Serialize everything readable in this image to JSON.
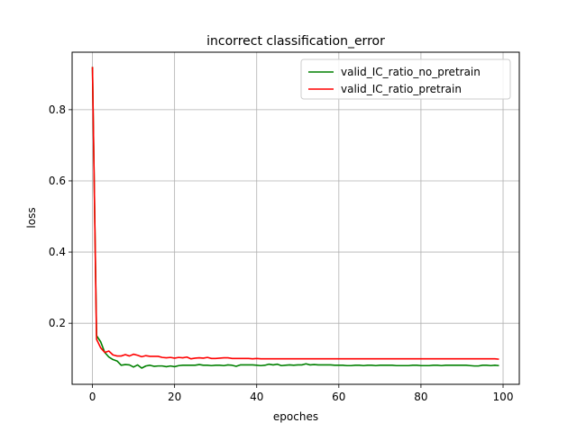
{
  "chart_data": {
    "type": "line",
    "title": "incorrect classification_error",
    "xlabel": "epoches",
    "ylabel": "loss",
    "xlim": [
      -4.95,
      103.95
    ],
    "ylim": [
      0.0285,
      0.9615
    ],
    "xticks": [
      0,
      20,
      40,
      60,
      80,
      100
    ],
    "yticks": [
      0.2,
      0.4,
      0.6,
      0.8
    ],
    "grid": true,
    "legend_position": "upper-right",
    "series": [
      {
        "name": "valid_IC_ratio_no_pretrain",
        "color": "#008000",
        "x": [
          0,
          1,
          2,
          3,
          4,
          5,
          6,
          7,
          8,
          9,
          10,
          11,
          12,
          13,
          14,
          15,
          16,
          17,
          18,
          19,
          20,
          21,
          22,
          23,
          24,
          25,
          26,
          27,
          28,
          29,
          30,
          31,
          32,
          33,
          34,
          35,
          36,
          37,
          38,
          39,
          40,
          41,
          42,
          43,
          44,
          45,
          46,
          47,
          48,
          49,
          50,
          51,
          52,
          53,
          54,
          55,
          56,
          57,
          58,
          59,
          60,
          61,
          62,
          63,
          64,
          65,
          66,
          67,
          68,
          69,
          70,
          71,
          72,
          73,
          74,
          75,
          76,
          77,
          78,
          79,
          80,
          81,
          82,
          83,
          84,
          85,
          86,
          87,
          88,
          89,
          90,
          91,
          92,
          93,
          94,
          95,
          96,
          97,
          98,
          99
        ],
        "values": [
          0.92,
          0.165,
          0.148,
          0.118,
          0.105,
          0.098,
          0.094,
          0.082,
          0.084,
          0.083,
          0.077,
          0.083,
          0.074,
          0.08,
          0.082,
          0.079,
          0.08,
          0.08,
          0.078,
          0.08,
          0.078,
          0.081,
          0.082,
          0.082,
          0.082,
          0.082,
          0.084,
          0.082,
          0.082,
          0.081,
          0.082,
          0.082,
          0.081,
          0.083,
          0.082,
          0.079,
          0.083,
          0.083,
          0.083,
          0.083,
          0.082,
          0.081,
          0.082,
          0.085,
          0.083,
          0.085,
          0.081,
          0.082,
          0.083,
          0.082,
          0.083,
          0.083,
          0.086,
          0.083,
          0.084,
          0.083,
          0.083,
          0.083,
          0.083,
          0.082,
          0.082,
          0.082,
          0.081,
          0.081,
          0.082,
          0.082,
          0.081,
          0.082,
          0.082,
          0.081,
          0.082,
          0.082,
          0.082,
          0.082,
          0.081,
          0.081,
          0.081,
          0.081,
          0.082,
          0.082,
          0.081,
          0.081,
          0.081,
          0.082,
          0.082,
          0.081,
          0.082,
          0.082,
          0.082,
          0.082,
          0.082,
          0.082,
          0.081,
          0.08,
          0.08,
          0.082,
          0.082,
          0.081,
          0.082,
          0.081
        ]
      },
      {
        "name": "valid_IC_ratio_pretrain",
        "color": "#ff0000",
        "x": [
          0,
          1,
          2,
          3,
          4,
          5,
          6,
          7,
          8,
          9,
          10,
          11,
          12,
          13,
          14,
          15,
          16,
          17,
          18,
          19,
          20,
          21,
          22,
          23,
          24,
          25,
          26,
          27,
          28,
          29,
          30,
          31,
          32,
          33,
          34,
          35,
          36,
          37,
          38,
          39,
          40,
          41,
          42,
          43,
          44,
          45,
          46,
          47,
          48,
          49,
          50,
          51,
          52,
          53,
          54,
          55,
          56,
          57,
          58,
          59,
          60,
          61,
          62,
          63,
          64,
          65,
          66,
          67,
          68,
          69,
          70,
          71,
          72,
          73,
          74,
          75,
          76,
          77,
          78,
          79,
          80,
          81,
          82,
          83,
          84,
          85,
          86,
          87,
          88,
          89,
          90,
          91,
          92,
          93,
          94,
          95,
          96,
          97,
          98,
          99
        ],
        "values": [
          0.92,
          0.155,
          0.131,
          0.118,
          0.122,
          0.111,
          0.108,
          0.108,
          0.112,
          0.108,
          0.113,
          0.11,
          0.106,
          0.109,
          0.107,
          0.107,
          0.107,
          0.104,
          0.103,
          0.104,
          0.102,
          0.104,
          0.103,
          0.105,
          0.1,
          0.102,
          0.103,
          0.102,
          0.104,
          0.101,
          0.101,
          0.102,
          0.103,
          0.103,
          0.101,
          0.101,
          0.101,
          0.101,
          0.101,
          0.1,
          0.101,
          0.1,
          0.1,
          0.1,
          0.1,
          0.1,
          0.1,
          0.1,
          0.1,
          0.1,
          0.1,
          0.1,
          0.1,
          0.1,
          0.1,
          0.1,
          0.1,
          0.1,
          0.1,
          0.1,
          0.1,
          0.1,
          0.1,
          0.1,
          0.1,
          0.1,
          0.1,
          0.1,
          0.1,
          0.1,
          0.1,
          0.1,
          0.1,
          0.1,
          0.1,
          0.1,
          0.1,
          0.1,
          0.1,
          0.1,
          0.1,
          0.1,
          0.1,
          0.1,
          0.1,
          0.1,
          0.1,
          0.1,
          0.1,
          0.1,
          0.1,
          0.1,
          0.1,
          0.1,
          0.1,
          0.1,
          0.1,
          0.1,
          0.1,
          0.099
        ]
      }
    ]
  }
}
